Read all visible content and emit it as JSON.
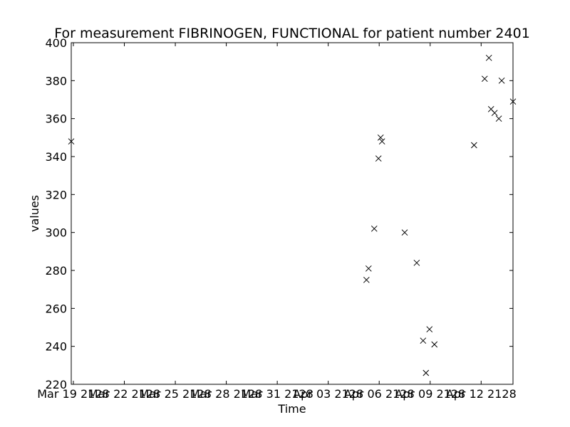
{
  "chart_data": {
    "type": "scatter",
    "title": "For measurement FIBRINOGEN, FUNCTIONAL for patient number 2401",
    "xlabel": "Time",
    "ylabel": "values",
    "marker": "x",
    "marker_color": "#000000",
    "grid": false,
    "legend": "none",
    "xlim": [
      "2128-03-18T21:00",
      "2128-04-13T21:00"
    ],
    "ylim": [
      220,
      400
    ],
    "x_ticks": [
      {
        "x": "2128-03-19",
        "label": "Mar 19 2128"
      },
      {
        "x": "2128-03-22",
        "label": "Mar 22 2128"
      },
      {
        "x": "2128-03-25",
        "label": "Mar 25 2128"
      },
      {
        "x": "2128-03-28",
        "label": "Mar 28 2128"
      },
      {
        "x": "2128-03-31",
        "label": "Mar 31 2128"
      },
      {
        "x": "2128-04-03",
        "label": "Apr 03 2128"
      },
      {
        "x": "2128-04-06",
        "label": "Apr 06 2128"
      },
      {
        "x": "2128-04-09",
        "label": "Apr 09 2128"
      },
      {
        "x": "2128-04-12",
        "label": "Apr 12 2128"
      }
    ],
    "y_ticks": [
      220,
      240,
      260,
      280,
      300,
      320,
      340,
      360,
      380,
      400
    ],
    "points": [
      {
        "x": "2128-03-18T21:00",
        "y": 348
      },
      {
        "x": "2128-04-05T06:00",
        "y": 275
      },
      {
        "x": "2128-04-05T09:00",
        "y": 281
      },
      {
        "x": "2128-04-05T17:00",
        "y": 302
      },
      {
        "x": "2128-04-05T23:00",
        "y": 339
      },
      {
        "x": "2128-04-06T02:00",
        "y": 350
      },
      {
        "x": "2128-04-06T04:00",
        "y": 348
      },
      {
        "x": "2128-04-07T12:00",
        "y": 300
      },
      {
        "x": "2128-04-08T05:00",
        "y": 284
      },
      {
        "x": "2128-04-08T14:00",
        "y": 243
      },
      {
        "x": "2128-04-08T18:00",
        "y": 226
      },
      {
        "x": "2128-04-08T23:00",
        "y": 249
      },
      {
        "x": "2128-04-09T06:00",
        "y": 241
      },
      {
        "x": "2128-04-11T14:00",
        "y": 346
      },
      {
        "x": "2128-04-12T05:00",
        "y": 381
      },
      {
        "x": "2128-04-12T11:00",
        "y": 392
      },
      {
        "x": "2128-04-12T14:00",
        "y": 365
      },
      {
        "x": "2128-04-12T19:00",
        "y": 363
      },
      {
        "x": "2128-04-13T01:00",
        "y": 360
      },
      {
        "x": "2128-04-13T05:00",
        "y": 380
      },
      {
        "x": "2128-04-13T21:00",
        "y": 369
      }
    ]
  }
}
